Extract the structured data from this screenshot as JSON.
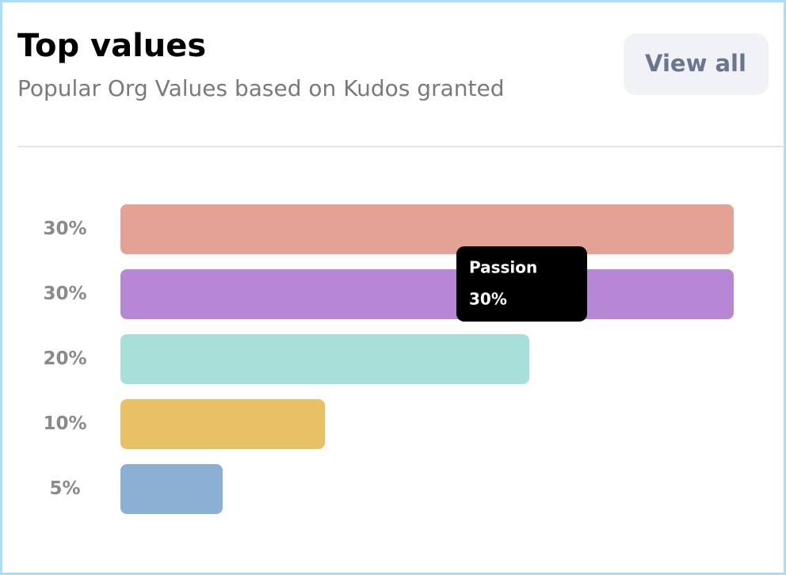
{
  "header": {
    "title": "Top values",
    "subtitle": "Popular Org Values based on Kudos granted",
    "button": "View all"
  },
  "chart_data": {
    "type": "bar",
    "orientation": "horizontal",
    "categories": [
      null,
      "Passion",
      null,
      null,
      null
    ],
    "values": [
      30,
      30,
      20,
      10,
      5
    ],
    "value_labels": [
      "30%",
      "30%",
      "20%",
      "10%",
      "5%"
    ],
    "colors": [
      "#e3a294",
      "#b687d4",
      "#a7dfd9",
      "#e8c065",
      "#8aafd2"
    ],
    "xlim": [
      0,
      30
    ]
  }
}
